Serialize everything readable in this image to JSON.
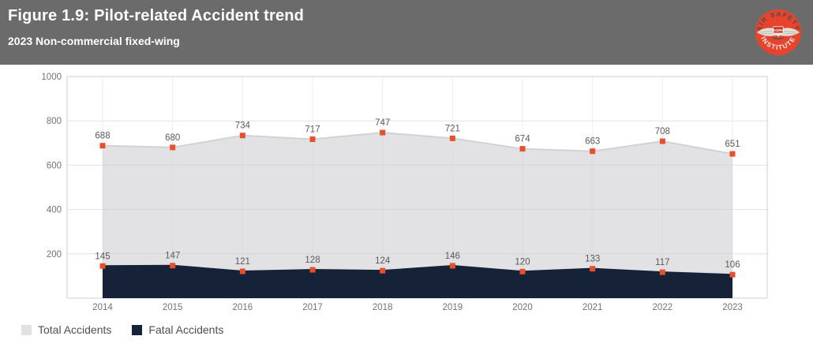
{
  "header": {
    "title": "Figure 1.9: Pilot-related Accident trend",
    "subtitle": "2023 Non-commercial fixed-wing",
    "background_color": "#6b6b6b"
  },
  "logo": {
    "arc_top": "AIR SAFETY",
    "arc_bottom": "INSTITUTE",
    "center_text": "AOPA",
    "badge_color": "#e8432c",
    "text_color": "#4d4d4f",
    "wing_color": "#e2dfd7"
  },
  "chart_data": {
    "type": "area",
    "categories": [
      "2014",
      "2015",
      "2016",
      "2017",
      "2018",
      "2019",
      "2020",
      "2021",
      "2022",
      "2023"
    ],
    "series": [
      {
        "name": "Total Accidents",
        "color": "#e1e1e4",
        "line_color": "#d2d2d6",
        "values": [
          688,
          680,
          734,
          717,
          747,
          721,
          674,
          663,
          708,
          651
        ]
      },
      {
        "name": "Fatal Accidents",
        "color": "#152238",
        "line_color": "#152238",
        "values": [
          145,
          147,
          121,
          128,
          124,
          146,
          120,
          133,
          117,
          106
        ]
      }
    ],
    "marker_color": "#e8502c",
    "ylim": [
      0,
      1000
    ],
    "yticks": [
      200,
      400,
      600,
      800,
      1000
    ],
    "grid": true,
    "legend_position": "bottom-left",
    "data_label_color": "#5a5a5a",
    "axis_label_color": "#737373",
    "gridline_color": "#e2e2e2",
    "vgridline_color": "#ededed",
    "plot_border_color": "#cccccc"
  }
}
